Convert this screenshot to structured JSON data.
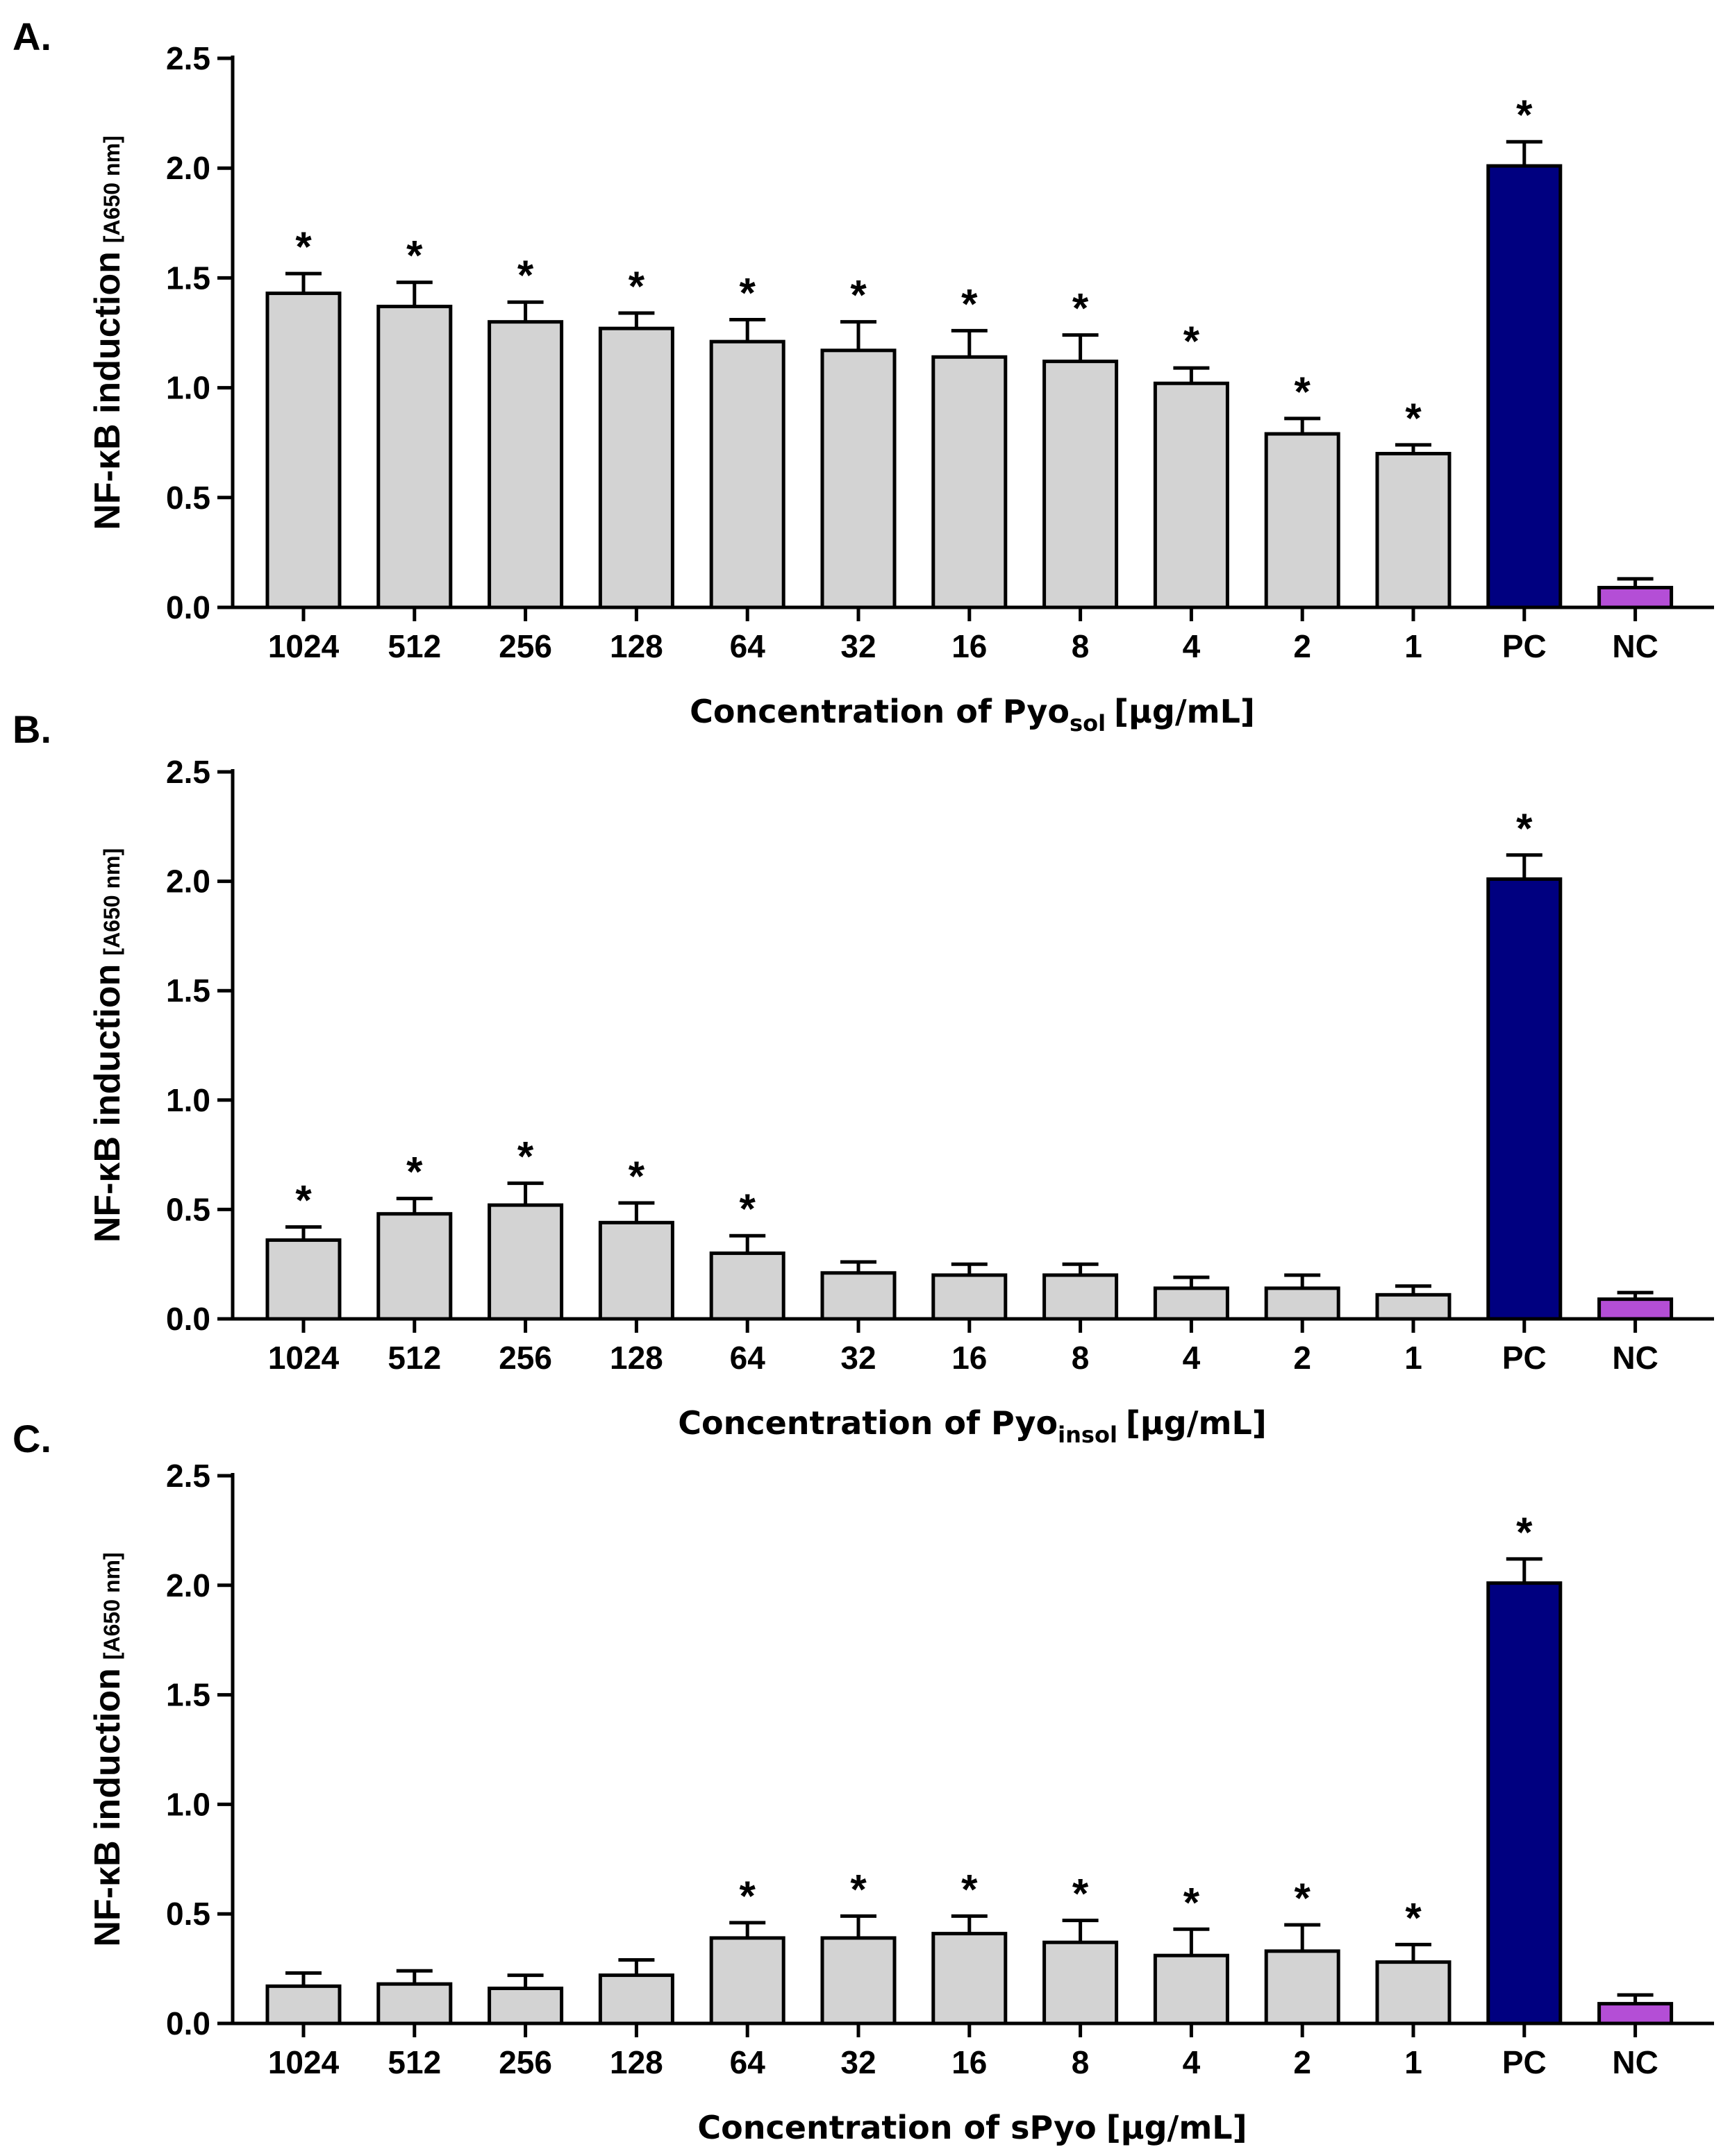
{
  "colors": {
    "sample": "#d3d3d3",
    "pc": "#000080",
    "nc": "#b44ed6",
    "stroke": "#000000"
  },
  "categories": [
    "1024",
    "512",
    "256",
    "128",
    "64",
    "32",
    "16",
    "8",
    "4",
    "2",
    "1",
    "PC",
    "NC"
  ],
  "chart_data": [
    {
      "type": "bar",
      "panel_label": "A.",
      "xlabel": {
        "main": "Concentration of Pyo",
        "sub": "sol",
        "units": "[µg/mL]"
      },
      "ylabel": {
        "main": "NF-κB induction",
        "units": "[A650 nm]"
      },
      "ylim": [
        0,
        2.5
      ],
      "yticks": [
        "0.0",
        "0.5",
        "1.0",
        "1.5",
        "2.0",
        "2.5"
      ],
      "categories": [
        "1024",
        "512",
        "256",
        "128",
        "64",
        "32",
        "16",
        "8",
        "4",
        "2",
        "1",
        "PC",
        "NC"
      ],
      "values": [
        1.43,
        1.37,
        1.3,
        1.27,
        1.21,
        1.17,
        1.14,
        1.12,
        1.02,
        0.79,
        0.7,
        2.01,
        0.09
      ],
      "errors": [
        0.09,
        0.11,
        0.09,
        0.07,
        0.1,
        0.13,
        0.12,
        0.12,
        0.07,
        0.07,
        0.04,
        0.11,
        0.04
      ],
      "significant": [
        true,
        true,
        true,
        true,
        true,
        true,
        true,
        true,
        true,
        true,
        true,
        true,
        false
      ],
      "star": "*"
    },
    {
      "type": "bar",
      "panel_label": "B.",
      "xlabel": {
        "main": "Concentration of Pyo",
        "sub": "insol",
        "units": "[µg/mL]"
      },
      "ylabel": {
        "main": "NF-κB induction",
        "units": "[A650 nm]"
      },
      "ylim": [
        0,
        2.5
      ],
      "yticks": [
        "0.0",
        "0.5",
        "1.0",
        "1.5",
        "2.0",
        "2.5"
      ],
      "categories": [
        "1024",
        "512",
        "256",
        "128",
        "64",
        "32",
        "16",
        "8",
        "4",
        "2",
        "1",
        "PC",
        "NC"
      ],
      "values": [
        0.36,
        0.48,
        0.52,
        0.44,
        0.3,
        0.21,
        0.2,
        0.2,
        0.14,
        0.14,
        0.11,
        2.01,
        0.09
      ],
      "errors": [
        0.06,
        0.07,
        0.1,
        0.09,
        0.08,
        0.05,
        0.05,
        0.05,
        0.05,
        0.06,
        0.04,
        0.11,
        0.03
      ],
      "significant": [
        true,
        true,
        true,
        true,
        true,
        false,
        false,
        false,
        false,
        false,
        false,
        true,
        false
      ],
      "star": "*"
    },
    {
      "type": "bar",
      "panel_label": "C.",
      "xlabel": {
        "main": "Concentration of sPyo",
        "sub": "",
        "units": "[µg/mL]"
      },
      "ylabel": {
        "main": "NF-κB induction",
        "units": "[A650 nm]"
      },
      "ylim": [
        0,
        2.5
      ],
      "yticks": [
        "0.0",
        "0.5",
        "1.0",
        "1.5",
        "2.0",
        "2.5"
      ],
      "categories": [
        "1024",
        "512",
        "256",
        "128",
        "64",
        "32",
        "16",
        "8",
        "4",
        "2",
        "1",
        "PC",
        "NC"
      ],
      "values": [
        0.17,
        0.18,
        0.16,
        0.22,
        0.39,
        0.39,
        0.41,
        0.37,
        0.31,
        0.33,
        0.28,
        2.01,
        0.09
      ],
      "errors": [
        0.06,
        0.06,
        0.06,
        0.07,
        0.07,
        0.1,
        0.08,
        0.1,
        0.12,
        0.12,
        0.08,
        0.11,
        0.04
      ],
      "significant": [
        false,
        false,
        false,
        false,
        true,
        true,
        true,
        true,
        true,
        true,
        true,
        true,
        false
      ],
      "star": "*"
    }
  ]
}
